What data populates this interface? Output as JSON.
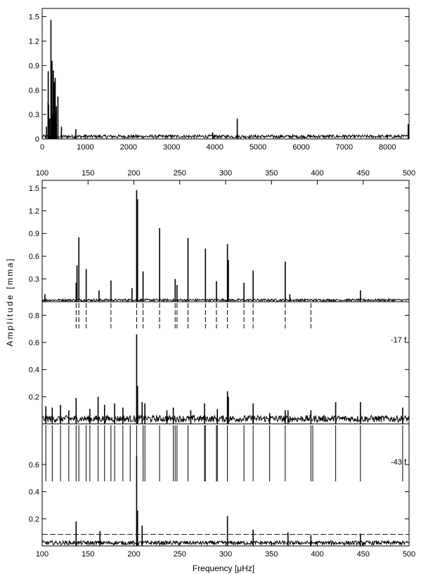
{
  "figure": {
    "ylabel": "Amplitude   [mma]",
    "xlabel_bottom": "Frequency [μHz]"
  },
  "chart_data": [
    {
      "id": "overview",
      "type": "line",
      "xlim": [
        0,
        8500
      ],
      "ylim": [
        0,
        1.6
      ],
      "xticks": [
        0,
        1000,
        2000,
        3000,
        4000,
        5000,
        6000,
        7000,
        8000
      ],
      "xtick_labels": [
        "0",
        "1000",
        "2000",
        "3000",
        "4000",
        "5000",
        "6000",
        "7000",
        "8000"
      ],
      "yticks": [
        0,
        0.3,
        0.6,
        0.9,
        1.2,
        1.5
      ],
      "ytick_labels": [
        "0",
        "0.3",
        "0.6",
        "0.9",
        "1.2",
        "1.5"
      ],
      "grid": false,
      "noise_level": 0.04,
      "peaks": [
        {
          "x": 100,
          "y": 0.15
        },
        {
          "x": 137,
          "y": 0.45
        },
        {
          "x": 140,
          "y": 0.83
        },
        {
          "x": 148,
          "y": 0.42
        },
        {
          "x": 175,
          "y": 0.25
        },
        {
          "x": 203,
          "y": 1.46
        },
        {
          "x": 210,
          "y": 0.4
        },
        {
          "x": 228,
          "y": 0.96
        },
        {
          "x": 245,
          "y": 0.3
        },
        {
          "x": 259,
          "y": 0.84
        },
        {
          "x": 278,
          "y": 0.7
        },
        {
          "x": 290,
          "y": 0.5
        },
        {
          "x": 302,
          "y": 0.75
        },
        {
          "x": 320,
          "y": 0.3
        },
        {
          "x": 330,
          "y": 0.4
        },
        {
          "x": 365,
          "y": 0.52
        },
        {
          "x": 447,
          "y": 0.15
        },
        {
          "x": 780,
          "y": 0.12
        },
        {
          "x": 3950,
          "y": 0.08
        },
        {
          "x": 4520,
          "y": 0.25
        },
        {
          "x": 8480,
          "y": 0.18
        }
      ]
    },
    {
      "id": "original",
      "type": "line",
      "xlim": [
        100,
        500
      ],
      "ylim": [
        0,
        1.6
      ],
      "xticks": [
        100,
        150,
        200,
        250,
        300,
        350,
        400,
        450,
        500
      ],
      "xtick_labels": [
        "100",
        "150",
        "200",
        "250",
        "300",
        "350",
        "400",
        "450",
        "500"
      ],
      "yticks": [
        0.3,
        0.6,
        0.9,
        1.2,
        1.5
      ],
      "ytick_labels": [
        "0.3",
        "0.6",
        "0.9",
        "1.2",
        "1.5"
      ],
      "grid": false,
      "noise_level": 0.03,
      "peaks": [
        {
          "x": 103,
          "y": 0.1
        },
        {
          "x": 137,
          "y": 0.25
        },
        {
          "x": 138,
          "y": 0.48
        },
        {
          "x": 140,
          "y": 0.85
        },
        {
          "x": 148,
          "y": 0.43
        },
        {
          "x": 162,
          "y": 0.15
        },
        {
          "x": 175,
          "y": 0.28
        },
        {
          "x": 198,
          "y": 0.18
        },
        {
          "x": 203,
          "y": 1.47
        },
        {
          "x": 204,
          "y": 1.35
        },
        {
          "x": 210,
          "y": 0.4
        },
        {
          "x": 228,
          "y": 0.97
        },
        {
          "x": 245,
          "y": 0.3
        },
        {
          "x": 247,
          "y": 0.22
        },
        {
          "x": 259,
          "y": 0.84
        },
        {
          "x": 278,
          "y": 0.7
        },
        {
          "x": 290,
          "y": 0.27
        },
        {
          "x": 302,
          "y": 0.76
        },
        {
          "x": 303,
          "y": 0.55
        },
        {
          "x": 320,
          "y": 0.25
        },
        {
          "x": 330,
          "y": 0.41
        },
        {
          "x": 365,
          "y": 0.53
        },
        {
          "x": 370,
          "y": 0.1
        },
        {
          "x": 447,
          "y": 0.15
        }
      ],
      "prewhitened_x": [
        137,
        140,
        148,
        175,
        203,
        210,
        228,
        245,
        247,
        259,
        278,
        290,
        302,
        320,
        330,
        365,
        393
      ]
    },
    {
      "id": "residual_17f",
      "type": "line",
      "annotation": "-17 f",
      "xlim": [
        100,
        500
      ],
      "ylim": [
        0,
        0.9
      ],
      "yticks": [
        0.2,
        0.4,
        0.6,
        0.8
      ],
      "ytick_labels": [
        "0.2",
        "0.4",
        "0.6",
        "0.8"
      ],
      "grid": false,
      "noise_level": 0.05,
      "peaks": [
        {
          "x": 104,
          "y": 0.13
        },
        {
          "x": 111,
          "y": 0.12
        },
        {
          "x": 120,
          "y": 0.14
        },
        {
          "x": 129,
          "y": 0.1
        },
        {
          "x": 137,
          "y": 0.19
        },
        {
          "x": 152,
          "y": 0.11
        },
        {
          "x": 161,
          "y": 0.2
        },
        {
          "x": 168,
          "y": 0.14
        },
        {
          "x": 179,
          "y": 0.15
        },
        {
          "x": 188,
          "y": 0.12
        },
        {
          "x": 203,
          "y": 0.66
        },
        {
          "x": 204,
          "y": 0.28
        },
        {
          "x": 209,
          "y": 0.16
        },
        {
          "x": 212,
          "y": 0.15
        },
        {
          "x": 236,
          "y": 0.1
        },
        {
          "x": 243,
          "y": 0.12
        },
        {
          "x": 262,
          "y": 0.1
        },
        {
          "x": 277,
          "y": 0.15
        },
        {
          "x": 291,
          "y": 0.11
        },
        {
          "x": 302,
          "y": 0.24
        },
        {
          "x": 303,
          "y": 0.2
        },
        {
          "x": 330,
          "y": 0.15
        },
        {
          "x": 348,
          "y": 0.08
        },
        {
          "x": 365,
          "y": 0.1
        },
        {
          "x": 368,
          "y": 0.1
        },
        {
          "x": 393,
          "y": 0.1
        },
        {
          "x": 420,
          "y": 0.16
        },
        {
          "x": 447,
          "y": 0.16
        },
        {
          "x": 493,
          "y": 0.12
        }
      ],
      "prewhitened_x": [
        104,
        111,
        120,
        129,
        137,
        140,
        148,
        152,
        161,
        168,
        175,
        179,
        188,
        196,
        203,
        210,
        212,
        228,
        243,
        245,
        247,
        259,
        277,
        278,
        290,
        291,
        302,
        320,
        330,
        348,
        365,
        393,
        395,
        420,
        447,
        493
      ]
    },
    {
      "id": "residual_43f",
      "type": "line",
      "annotation": "-43 f",
      "xlim": [
        100,
        500
      ],
      "xticks": [
        100,
        150,
        200,
        250,
        300,
        350,
        400,
        450,
        500
      ],
      "xtick_labels": [
        "100",
        "150",
        "200",
        "250",
        "300",
        "350",
        "400",
        "450",
        "500"
      ],
      "ylim": [
        0,
        0.9
      ],
      "yticks": [
        0.2,
        0.4,
        0.6
      ],
      "ytick_labels": [
        "0.2",
        "0.4",
        "0.6"
      ],
      "grid": false,
      "noise_level": 0.03,
      "threshold": 0.085,
      "peaks": [
        {
          "x": 137,
          "y": 0.18
        },
        {
          "x": 163,
          "y": 0.11
        },
        {
          "x": 203,
          "y": 0.66
        },
        {
          "x": 204,
          "y": 0.26
        },
        {
          "x": 209,
          "y": 0.15
        },
        {
          "x": 302,
          "y": 0.22
        },
        {
          "x": 330,
          "y": 0.12
        },
        {
          "x": 368,
          "y": 0.1
        },
        {
          "x": 393,
          "y": 0.08
        },
        {
          "x": 447,
          "y": 0.09
        }
      ]
    }
  ]
}
